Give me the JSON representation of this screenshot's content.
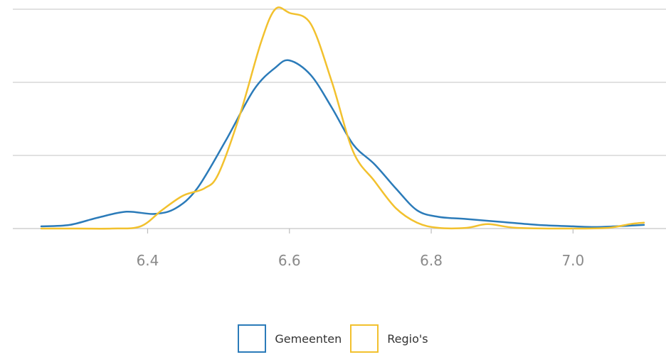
{
  "chart_data": {
    "type": "line",
    "title": "",
    "xlabel": "",
    "ylabel": "",
    "xlim": [
      6.25,
      7.1
    ],
    "ylim": [
      0,
      3
    ],
    "x_ticks": [
      6.4,
      6.6,
      6.8,
      7.0
    ],
    "x_tick_labels": [
      "6.4",
      "6.6",
      "6.8",
      "7.0"
    ],
    "y_gridlines": [
      0,
      1,
      2,
      3
    ],
    "grid": "horizontal",
    "legend": "bottom-center",
    "series": [
      {
        "name": "Gemeenten",
        "color": "#2b7bb9",
        "points": [
          [
            6.25,
            0.03
          ],
          [
            6.29,
            0.05
          ],
          [
            6.33,
            0.15
          ],
          [
            6.37,
            0.23
          ],
          [
            6.41,
            0.2
          ],
          [
            6.44,
            0.28
          ],
          [
            6.47,
            0.55
          ],
          [
            6.51,
            1.2
          ],
          [
            6.55,
            1.9
          ],
          [
            6.58,
            2.2
          ],
          [
            6.6,
            2.3
          ],
          [
            6.63,
            2.1
          ],
          [
            6.66,
            1.65
          ],
          [
            6.69,
            1.15
          ],
          [
            6.72,
            0.88
          ],
          [
            6.75,
            0.55
          ],
          [
            6.78,
            0.25
          ],
          [
            6.81,
            0.16
          ],
          [
            6.85,
            0.13
          ],
          [
            6.9,
            0.09
          ],
          [
            6.95,
            0.05
          ],
          [
            7.0,
            0.03
          ],
          [
            7.03,
            0.02
          ],
          [
            7.06,
            0.03
          ],
          [
            7.1,
            0.05
          ]
        ]
      },
      {
        "name": "Regio's",
        "color": "#f2c12e",
        "points": [
          [
            6.25,
            0.0
          ],
          [
            6.3,
            0.0
          ],
          [
            6.35,
            0.0
          ],
          [
            6.39,
            0.03
          ],
          [
            6.42,
            0.25
          ],
          [
            6.45,
            0.45
          ],
          [
            6.48,
            0.55
          ],
          [
            6.5,
            0.75
          ],
          [
            6.53,
            1.55
          ],
          [
            6.56,
            2.55
          ],
          [
            6.58,
            3.0
          ],
          [
            6.6,
            2.95
          ],
          [
            6.63,
            2.8
          ],
          [
            6.66,
            2.0
          ],
          [
            6.69,
            1.05
          ],
          [
            6.72,
            0.65
          ],
          [
            6.75,
            0.28
          ],
          [
            6.78,
            0.08
          ],
          [
            6.81,
            0.01
          ],
          [
            6.85,
            0.01
          ],
          [
            6.88,
            0.06
          ],
          [
            6.92,
            0.01
          ],
          [
            7.0,
            0.0
          ],
          [
            7.05,
            0.01
          ],
          [
            7.08,
            0.06
          ],
          [
            7.1,
            0.08
          ]
        ]
      }
    ]
  }
}
